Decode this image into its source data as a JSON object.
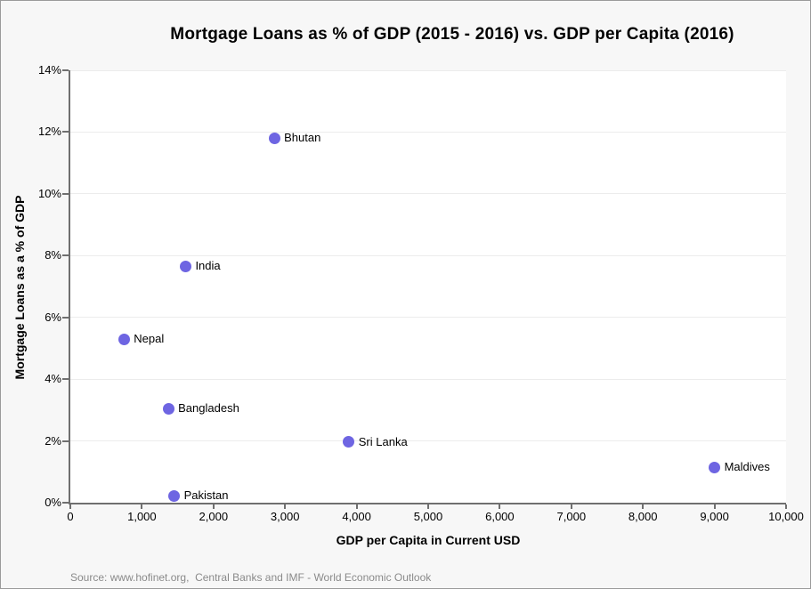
{
  "chart_data": {
    "type": "scatter",
    "title": "Mortgage Loans as % of GDP (2015 - 2016) vs. GDP per Capita (2016)",
    "xlabel": "GDP per Capita in Current USD",
    "ylabel": "Mortgage Loans as a  % of GDP",
    "xlim": [
      0,
      10000
    ],
    "ylim": [
      0,
      14
    ],
    "grid": "horizontal",
    "legend": "none",
    "x_tick_values": [
      0,
      1000,
      2000,
      3000,
      4000,
      5000,
      6000,
      7000,
      8000,
      9000,
      10000
    ],
    "x_tick_labels": [
      "0",
      "1,000",
      "2,000",
      "3,000",
      "4,000",
      "5,000",
      "6,000",
      "7,000",
      "8,000",
      "9,000",
      "10,000"
    ],
    "y_tick_values": [
      0,
      2,
      4,
      6,
      8,
      10,
      12,
      14
    ],
    "y_tick_labels": [
      "0%",
      "2%",
      "4%",
      "6%",
      "8%",
      "10%",
      "12%",
      "14%"
    ],
    "point_color": "#6e65e2",
    "points": [
      {
        "name": "Bhutan",
        "x": 2850,
        "y": 11.8
      },
      {
        "name": "India",
        "x": 1610,
        "y": 7.65
      },
      {
        "name": "Nepal",
        "x": 750,
        "y": 5.3
      },
      {
        "name": "Bangladesh",
        "x": 1370,
        "y": 3.05
      },
      {
        "name": "Sri Lanka",
        "x": 3890,
        "y": 1.97
      },
      {
        "name": "Maldives",
        "x": 9000,
        "y": 1.15
      },
      {
        "name": "Pakistan",
        "x": 1450,
        "y": 0.22
      }
    ]
  },
  "source": "Source: www.hofinet.org,  Central Banks and IMF - World Economic Outlook",
  "colors": {
    "background": "#f7f7f7",
    "plot_background": "#ffffff",
    "gridline": "#ececec",
    "axis": "#6f6f6f",
    "text": "#000000",
    "source_text": "#8a8a8a",
    "frame_border": "#9b9b9b",
    "marker": "#6e65e2"
  }
}
